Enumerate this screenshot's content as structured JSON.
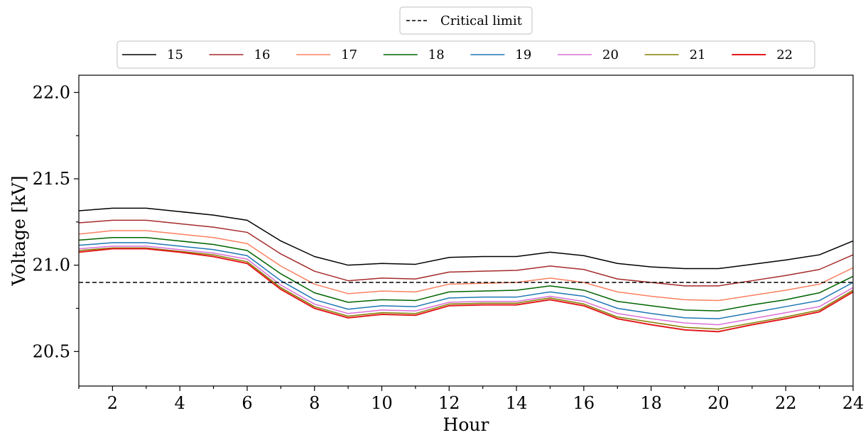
{
  "chart_data": {
    "type": "line",
    "xlabel": "Hour",
    "ylabel": "Voltage [kV]",
    "xlim": [
      1,
      24
    ],
    "ylim": [
      20.3,
      22.1
    ],
    "xticks": [
      2,
      4,
      6,
      8,
      10,
      12,
      14,
      16,
      18,
      20,
      22,
      24
    ],
    "xtick_labels": [
      "2",
      "4",
      "6",
      "8",
      "10",
      "12",
      "14",
      "16",
      "18",
      "20",
      "22",
      "24"
    ],
    "yticks": [
      20.5,
      21.0,
      21.5,
      22.0
    ],
    "ytick_labels": [
      "20.5",
      "21.0",
      "21.5",
      "22.0"
    ],
    "grid": false,
    "x": [
      1,
      2,
      3,
      4,
      5,
      6,
      7,
      8,
      9,
      10,
      11,
      12,
      13,
      14,
      15,
      16,
      17,
      18,
      19,
      20,
      21,
      22,
      23,
      24
    ],
    "reference_line": {
      "name": "Critical limit",
      "value": 20.9,
      "color": "#000000",
      "style": "dashed"
    },
    "legend_placement": "top-center",
    "series": [
      {
        "name": "15",
        "color": "#000000",
        "values": [
          21.315,
          21.33,
          21.33,
          21.31,
          21.29,
          21.26,
          21.14,
          21.05,
          21.0,
          21.01,
          21.005,
          21.045,
          21.05,
          21.05,
          21.075,
          21.055,
          21.01,
          20.99,
          20.98,
          20.98,
          21.005,
          21.03,
          21.06,
          21.14
        ]
      },
      {
        "name": "16",
        "color": "#a52a2a",
        "values": [
          21.245,
          21.26,
          21.26,
          21.24,
          21.22,
          21.19,
          21.065,
          20.965,
          20.91,
          20.925,
          20.92,
          20.96,
          20.965,
          20.97,
          20.995,
          20.975,
          20.92,
          20.9,
          20.88,
          20.88,
          20.91,
          20.94,
          20.975,
          21.06
        ]
      },
      {
        "name": "17",
        "color": "#fa8060",
        "values": [
          21.18,
          21.2,
          21.2,
          21.18,
          21.16,
          21.125,
          20.995,
          20.89,
          20.835,
          20.85,
          20.845,
          20.89,
          20.895,
          20.9,
          20.925,
          20.9,
          20.845,
          20.82,
          20.8,
          20.795,
          20.825,
          20.855,
          20.89,
          20.985
        ]
      },
      {
        "name": "18",
        "color": "#006400",
        "values": [
          21.145,
          21.16,
          21.16,
          21.14,
          21.12,
          21.085,
          20.95,
          20.84,
          20.785,
          20.8,
          20.795,
          20.845,
          20.85,
          20.855,
          20.88,
          20.855,
          20.79,
          20.765,
          20.74,
          20.735,
          20.77,
          20.8,
          20.84,
          20.935
        ]
      },
      {
        "name": "19",
        "color": "#1f77b4",
        "values": [
          21.115,
          21.13,
          21.13,
          21.11,
          21.09,
          21.055,
          20.91,
          20.8,
          20.745,
          20.765,
          20.76,
          20.81,
          20.815,
          20.815,
          20.845,
          20.82,
          20.75,
          20.72,
          20.695,
          20.69,
          20.725,
          20.76,
          20.795,
          20.9
        ]
      },
      {
        "name": "20",
        "color": "#da70d6",
        "values": [
          21.095,
          21.11,
          21.11,
          21.09,
          21.07,
          21.035,
          20.885,
          20.775,
          20.72,
          20.74,
          20.735,
          20.785,
          20.79,
          20.79,
          20.82,
          20.79,
          20.72,
          20.69,
          20.665,
          20.655,
          20.69,
          20.725,
          20.76,
          20.87
        ]
      },
      {
        "name": "21",
        "color": "#808000",
        "values": [
          21.085,
          21.1,
          21.1,
          21.08,
          21.06,
          21.02,
          20.87,
          20.76,
          20.705,
          20.725,
          20.72,
          20.775,
          20.78,
          20.78,
          20.81,
          20.775,
          20.7,
          20.67,
          20.64,
          20.63,
          20.665,
          20.7,
          20.74,
          20.855
        ]
      },
      {
        "name": "22",
        "color": "#e31a1c",
        "values": [
          21.075,
          21.095,
          21.095,
          21.075,
          21.05,
          21.01,
          20.86,
          20.75,
          20.695,
          20.715,
          20.71,
          20.765,
          20.77,
          20.77,
          20.8,
          20.765,
          20.69,
          20.655,
          20.625,
          20.615,
          20.655,
          20.69,
          20.73,
          20.845
        ]
      }
    ]
  }
}
